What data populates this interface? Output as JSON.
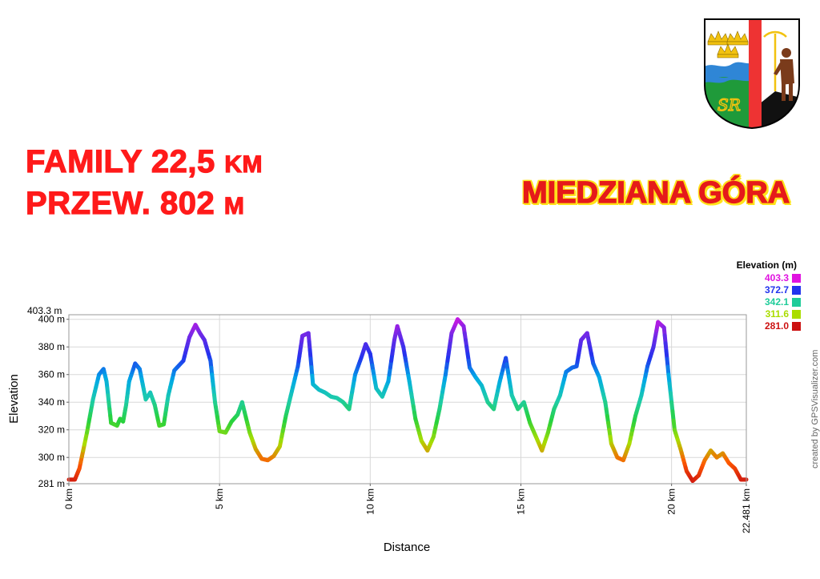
{
  "route": {
    "line1": "FAMILY 22,5",
    "line1_unit": "KM",
    "line2": "PRZEW. 802",
    "line2_unit": "M"
  },
  "place": {
    "name": "MIEDZIANA GÓRA"
  },
  "credit": "created by GPSVisualizer.com",
  "colors": {
    "title_red": "#ff1a1a",
    "place_red": "#e51a1a",
    "place_outline": "#ffe21a",
    "crest_blue": "#2f86d6",
    "crest_green": "#1f9a3a",
    "crest_red": "#ee3333",
    "crest_black": "#111111",
    "crest_gold": "#f2c20f"
  },
  "crest": {
    "icon": "coat-of-arms-icon"
  },
  "chart_data": {
    "type": "line",
    "xlabel": "Distance",
    "ylabel": "Elevation",
    "x_unit": "km",
    "y_unit": "m",
    "xlim": [
      0,
      22.481
    ],
    "ylim": [
      281.0,
      403.3
    ],
    "x_ticks": [
      0,
      5,
      10,
      15,
      20,
      22.481
    ],
    "x_tick_labels": [
      "0 km",
      "5 km",
      "10 km",
      "15 km",
      "20 km",
      "22.481 km"
    ],
    "y_ticks": [
      281,
      300,
      320,
      340,
      360,
      380,
      400
    ],
    "y_tick_labels": [
      "281 m",
      "300 m",
      "320 m",
      "340 m",
      "360 m",
      "380 m",
      "400 m"
    ],
    "y_max_label": "403.3 m",
    "grid": true,
    "legend": {
      "title": "Elevation (m)",
      "placement": "top-right",
      "entries": [
        {
          "label": "403.3",
          "color": "#e012e0"
        },
        {
          "label": "372.7",
          "color": "#2233ee"
        },
        {
          "label": "342.1",
          "color": "#1ecc99"
        },
        {
          "label": "311.6",
          "color": "#aadd00"
        },
        {
          "label": "281.0",
          "color": "#cc1111"
        }
      ]
    },
    "series": [
      {
        "x": [
          0,
          0.2,
          0.35,
          0.6,
          0.8,
          1.0,
          1.15,
          1.25,
          1.4,
          1.6,
          1.7,
          1.8,
          1.9,
          2.0,
          2.2,
          2.35,
          2.55,
          2.7,
          2.85,
          3.0,
          3.15,
          3.3,
          3.5,
          3.8,
          4.0,
          4.2,
          4.35,
          4.5,
          4.7,
          4.85,
          5.0,
          5.2,
          5.4,
          5.6,
          5.75,
          6.0,
          6.2,
          6.4,
          6.6,
          6.8,
          7.0,
          7.2,
          7.4,
          7.6,
          7.75,
          7.95,
          8.1,
          8.3,
          8.5,
          8.7,
          8.9,
          9.1,
          9.3,
          9.5,
          9.7,
          9.85,
          10.0,
          10.2,
          10.4,
          10.6,
          10.8,
          10.9,
          11.1,
          11.3,
          11.5,
          11.7,
          11.9,
          12.1,
          12.3,
          12.5,
          12.7,
          12.9,
          13.1,
          13.3,
          13.5,
          13.7,
          13.9,
          14.1,
          14.3,
          14.5,
          14.7,
          14.9,
          15.1,
          15.3,
          15.5,
          15.7,
          15.9,
          16.1,
          16.3,
          16.5,
          16.7,
          16.85,
          17.0,
          17.2,
          17.4,
          17.6,
          17.8,
          18.0,
          18.2,
          18.4,
          18.6,
          18.8,
          19.0,
          19.2,
          19.4,
          19.55,
          19.75,
          19.9,
          20.1,
          20.3,
          20.5,
          20.7,
          20.9,
          21.1,
          21.3,
          21.5,
          21.7,
          21.9,
          22.1,
          22.3,
          22.481
        ],
        "y": [
          284,
          284,
          292,
          318,
          342,
          360,
          364,
          355,
          325,
          323,
          328,
          326,
          338,
          355,
          368,
          364,
          342,
          347,
          338,
          323,
          324,
          345,
          363,
          370,
          387,
          396,
          390,
          385,
          370,
          340,
          319,
          318,
          326,
          331,
          340,
          318,
          306,
          299,
          298,
          301,
          308,
          330,
          348,
          366,
          388,
          390,
          353,
          349,
          347,
          344,
          343,
          340,
          335,
          360,
          372,
          382,
          375,
          350,
          344,
          355,
          385,
          395,
          380,
          355,
          328,
          312,
          305,
          315,
          335,
          360,
          390,
          400,
          395,
          365,
          358,
          352,
          340,
          335,
          355,
          372,
          345,
          335,
          340,
          325,
          315,
          305,
          318,
          335,
          345,
          362,
          365,
          366,
          385,
          390,
          368,
          358,
          340,
          310,
          300,
          298,
          310,
          330,
          345,
          366,
          380,
          398,
          394,
          360,
          320,
          306,
          290,
          283,
          287,
          298,
          305,
          300,
          303,
          296,
          292,
          284,
          284
        ]
      }
    ]
  }
}
